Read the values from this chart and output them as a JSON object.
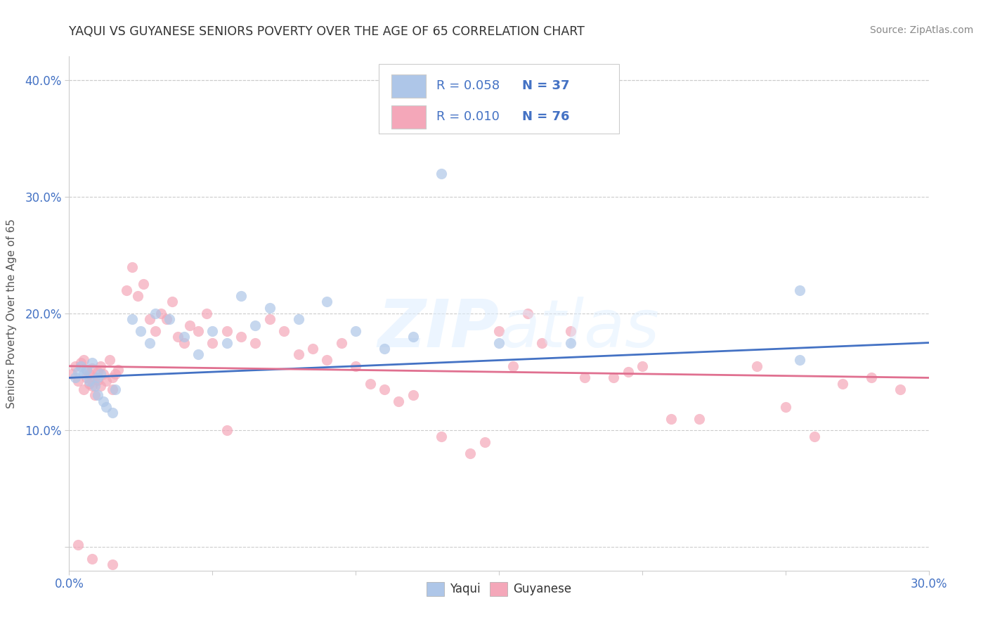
{
  "title": "YAQUI VS GUYANESE SENIORS POVERTY OVER THE AGE OF 65 CORRELATION CHART",
  "source": "Source: ZipAtlas.com",
  "ylabel": "Seniors Poverty Over the Age of 65",
  "xlim": [
    0.0,
    0.3
  ],
  "ylim": [
    -0.02,
    0.42
  ],
  "yaqui_R": 0.058,
  "yaqui_N": 37,
  "guyanese_R": 0.01,
  "guyanese_N": 76,
  "yaqui_color": "#aec6e8",
  "guyanese_color": "#f4a7b9",
  "yaqui_line_color": "#4472c4",
  "guyanese_line_color": "#e07090",
  "legend_text_color": "#4472c4",
  "watermark_zip_color": "#dde8f5",
  "watermark_atlas_color": "#dde8f5",
  "background_color": "#ffffff",
  "title_color": "#333333",
  "axis_color": "#cccccc",
  "tick_label_color": "#4472c4",
  "ylabel_color": "#555555",
  "source_color": "#888888"
}
